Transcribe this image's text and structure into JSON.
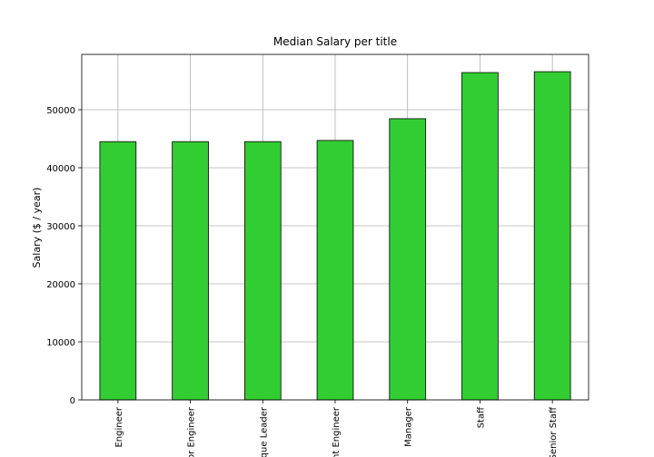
{
  "chart_data": {
    "type": "bar",
    "title": "Median Salary per title",
    "ylabel": "Salary ($ / year)",
    "categories": [
      "Engineer",
      "or Engineer",
      "que Leader",
      "nt Engineer",
      "Manager",
      "Staff",
      "Senior Staff"
    ],
    "values": [
      44500,
      44500,
      44500,
      44700,
      48450,
      56400,
      56550
    ],
    "color": "#32cd32",
    "ylim": [
      0,
      59530
    ],
    "yticks": [
      0,
      10000,
      20000,
      30000,
      40000,
      50000
    ],
    "grid": true
  }
}
